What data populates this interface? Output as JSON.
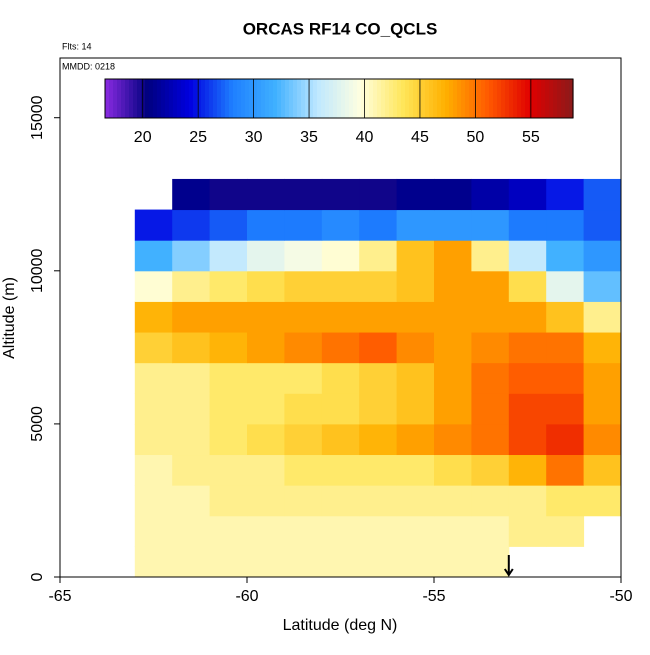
{
  "chart_data": {
    "type": "heatmap",
    "title": "ORCAS RF14 CO_QCLS",
    "annotations": [
      "Flts: 14",
      "MMDD: 0218"
    ],
    "x_label": "Latitude (deg N)",
    "y_label": "Altitude (m)",
    "x": [
      -63,
      -62,
      -61,
      -60,
      -59,
      -58,
      -57,
      -56,
      -55,
      -54,
      -53,
      -52,
      -51,
      -50
    ],
    "y": [
      0,
      1000,
      2000,
      3000,
      4000,
      5000,
      6000,
      7000,
      8000,
      9000,
      10000,
      11000,
      12000,
      13000
    ],
    "values": [
      [
        41,
        41,
        41,
        41,
        41,
        41,
        41,
        41,
        41,
        41,
        null,
        null,
        null
      ],
      [
        41,
        41,
        41,
        41,
        41,
        41,
        41,
        41,
        41,
        41,
        42,
        42,
        null
      ],
      [
        41,
        41,
        42,
        42,
        42,
        42,
        42,
        42,
        42,
        42,
        42,
        43,
        43
      ],
      [
        41,
        42,
        42,
        42,
        43,
        43,
        43,
        43,
        44,
        45,
        47,
        50,
        46
      ],
      [
        42,
        42,
        43,
        44,
        45,
        46,
        47,
        48,
        49,
        50,
        52,
        53,
        49
      ],
      [
        42,
        42,
        43,
        43,
        44,
        44,
        45,
        46,
        48,
        50,
        52,
        52,
        48
      ],
      [
        42,
        42,
        43,
        43,
        43,
        44,
        45,
        46,
        48,
        50,
        51,
        51,
        48
      ],
      [
        45,
        46,
        47,
        48,
        49,
        50,
        51,
        49,
        48,
        49,
        50,
        50,
        47
      ],
      [
        47,
        48,
        48,
        48,
        48,
        48,
        48,
        48,
        48,
        48,
        48,
        46,
        42
      ],
      [
        40,
        42,
        43,
        44,
        45,
        45,
        45,
        46,
        48,
        48,
        44,
        38,
        33
      ],
      [
        32,
        34,
        36,
        38,
        39,
        40,
        42,
        46,
        48,
        42,
        36,
        32,
        30
      ],
      [
        25,
        26,
        27,
        28,
        28,
        29,
        28,
        30,
        30,
        30,
        28,
        28,
        27
      ],
      [
        null,
        21,
        20,
        20,
        20,
        20,
        20,
        21,
        21,
        22,
        23,
        25,
        27
      ]
    ],
    "zlim": [
      16.6,
      58.8
    ],
    "zticks": [
      20,
      25,
      30,
      35,
      40,
      45,
      50,
      55
    ],
    "colors": [
      "#8a2be2",
      "#00007f",
      "#0000e0",
      "#1e7fff",
      "#3fb0ff",
      "#bfe8ff",
      "#ffffe0",
      "#ffe65a",
      "#ffb000",
      "#ff5a00",
      "#e00000",
      "#8b1a1a"
    ],
    "xlim": [
      -65,
      -50
    ],
    "xticks": [
      -65,
      -60,
      -55,
      -50
    ],
    "ylim": [
      0,
      16950
    ],
    "yticks": [
      0,
      5000,
      10000,
      15000
    ],
    "arrow_x": -53
  }
}
